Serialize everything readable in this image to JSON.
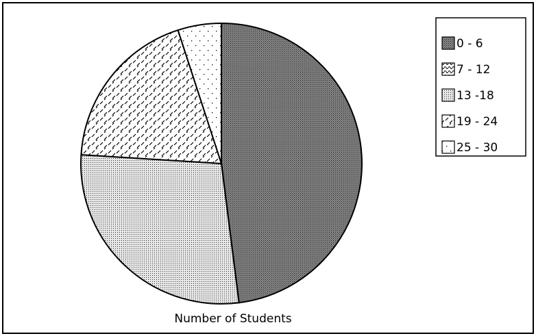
{
  "chart_data": {
    "type": "pie",
    "title": "Number of Students",
    "categories": [
      "0 - 6",
      "7 - 12",
      "13 -18",
      "19 - 24",
      "25 - 30"
    ],
    "values": [
      48,
      0,
      28,
      19,
      5
    ]
  }
}
